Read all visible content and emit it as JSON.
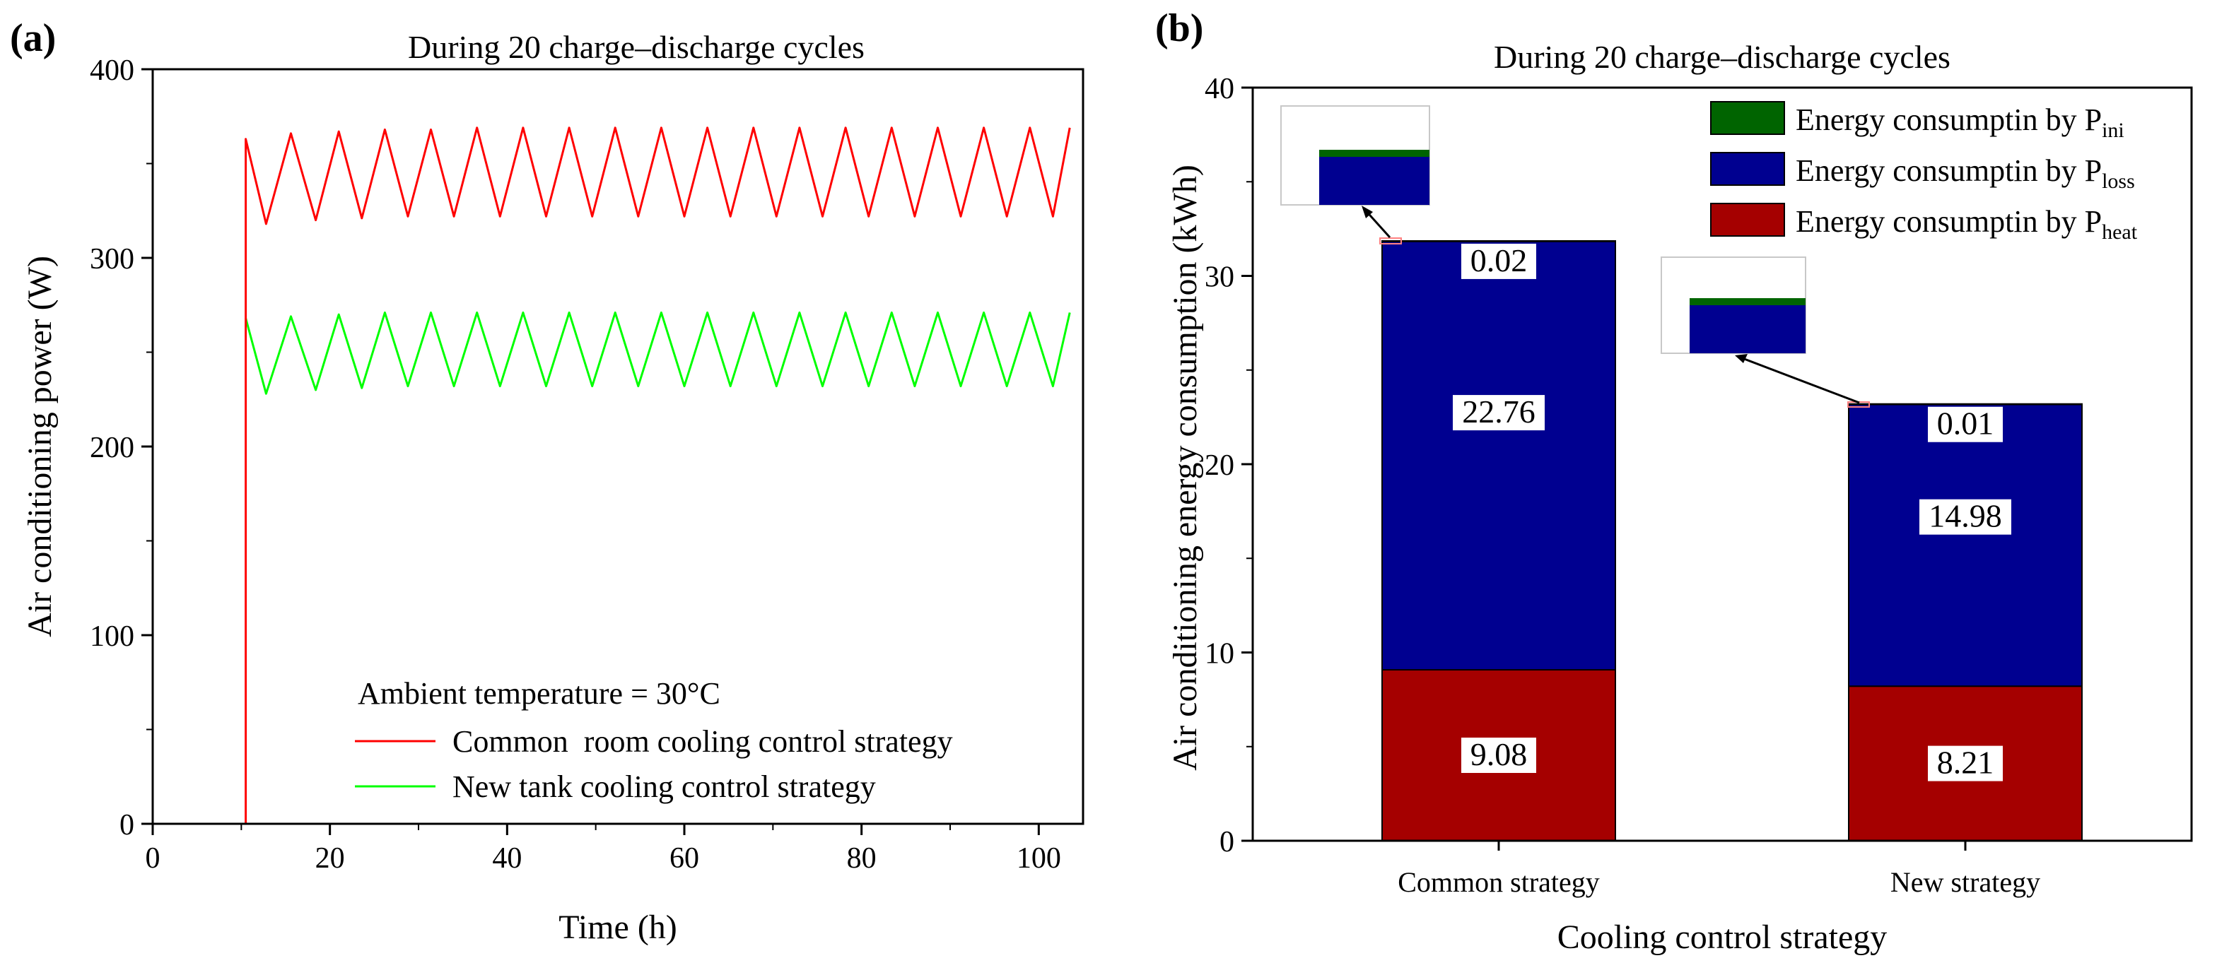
{
  "chart_data": [
    {
      "panel": "(a)",
      "type": "line",
      "title": "During 20 charge–discharge cycles",
      "xlabel": "Time (h)",
      "ylabel": "Air conditioning power (W)",
      "xlim": [
        0,
        105
      ],
      "ylim": [
        0,
        400
      ],
      "xticks": [
        0,
        20,
        40,
        60,
        80,
        100
      ],
      "yticks": [
        0,
        100,
        200,
        300,
        400
      ],
      "annotation": "Ambient temperature = 30°C",
      "series": [
        {
          "name": "Common  room cooling control strategy",
          "color": "#ff0000",
          "x": [
            0,
            10.5,
            10.5,
            12.8,
            15.6,
            18.4,
            21.0,
            23.6,
            26.2,
            28.8,
            31.4,
            34.0,
            36.6,
            39.2,
            41.8,
            44.4,
            47.0,
            49.6,
            52.2,
            54.8,
            57.4,
            60.0,
            62.6,
            65.2,
            67.8,
            70.4,
            73.0,
            75.6,
            78.2,
            80.8,
            83.4,
            86.0,
            88.6,
            91.2,
            93.8,
            96.4,
            99.0,
            101.6,
            103.5
          ],
          "y": [
            0,
            0,
            363,
            318,
            366,
            320,
            367,
            321,
            368,
            322,
            368,
            322,
            369,
            322,
            369,
            322,
            369,
            322,
            369,
            322,
            369,
            322,
            369,
            322,
            369,
            322,
            369,
            322,
            369,
            322,
            369,
            322,
            369,
            322,
            369,
            322,
            369,
            322,
            369
          ]
        },
        {
          "name": "New tank cooling control strategy",
          "color": "#00ff00",
          "x": [
            10.5,
            12.8,
            15.6,
            18.4,
            21.0,
            23.6,
            26.2,
            28.8,
            31.4,
            34.0,
            36.6,
            39.2,
            41.8,
            44.4,
            47.0,
            49.6,
            52.2,
            54.8,
            57.4,
            60.0,
            62.6,
            65.2,
            67.8,
            70.4,
            73.0,
            75.6,
            78.2,
            80.8,
            83.4,
            86.0,
            88.6,
            91.2,
            93.8,
            96.4,
            99.0,
            101.6,
            103.5
          ],
          "y": [
            268,
            228,
            269,
            230,
            270,
            231,
            271,
            232,
            271,
            232,
            271,
            232,
            271,
            232,
            271,
            232,
            271,
            232,
            271,
            232,
            271,
            232,
            271,
            232,
            271,
            232,
            271,
            232,
            271,
            232,
            271,
            232,
            271,
            232,
            271,
            232,
            271
          ]
        }
      ]
    },
    {
      "panel": "(b)",
      "type": "bar",
      "stacked": true,
      "title": "During 20 charge–discharge cycles",
      "xlabel": "Cooling control strategy",
      "ylabel": "Air conditioning energy consumption (kWh)",
      "ylim": [
        0,
        40
      ],
      "yticks": [
        0,
        10,
        20,
        30,
        40
      ],
      "categories": [
        "Common strategy",
        "New strategy"
      ],
      "series": [
        {
          "name": "Energy consumptin by P",
          "subscript": "heat",
          "color": "#a50000",
          "values": [
            9.08,
            8.21
          ],
          "labels": [
            "9.08",
            "8.21"
          ]
        },
        {
          "name": "Energy consumptin by P",
          "subscript": "loss",
          "color": "#000090",
          "values": [
            22.76,
            14.98
          ],
          "labels": [
            "22.76",
            "14.98"
          ]
        },
        {
          "name": "Energy consumptin by P",
          "subscript": "ini",
          "color": "#006400",
          "values": [
            0.02,
            0.01
          ],
          "labels": [
            "0.02",
            "0.01"
          ]
        }
      ],
      "legend_order": [
        2,
        1,
        0
      ],
      "legend_position": "top-right"
    }
  ]
}
